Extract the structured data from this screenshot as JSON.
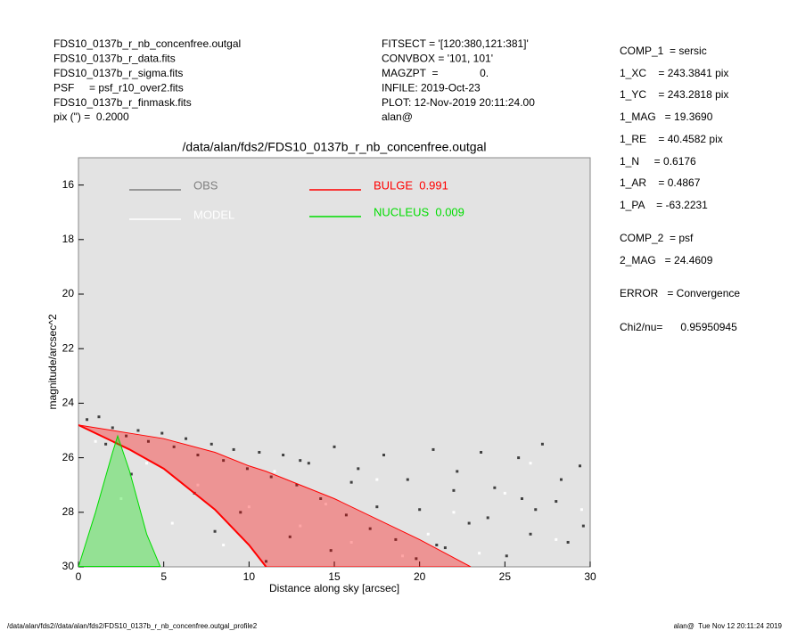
{
  "header": {
    "left": [
      "FDS10_0137b_r_nb_concenfree.outgal",
      "FDS10_0137b_r_data.fits",
      "FDS10_0137b_r_sigma.fits",
      "PSF     = psf_r10_over2.fits",
      "FDS10_0137b_r_finmask.fits",
      "pix (\") =  0.2000"
    ],
    "middle": [
      "FITSECT = '[120:380,121:381]'",
      "CONVBOX = '101, 101'",
      "MAGZPT  =              0.",
      "INFILE: 2019-Oct-23",
      "PLOT: 12-Nov-2019 20:11:24.00",
      "alan@"
    ],
    "right": [
      "COMP_1  = sersic",
      "1_XC    = 243.3841 pix",
      "1_YC    = 243.2818 pix",
      "1_MAG   = 19.3690",
      "1_RE    = 40.4582 pix",
      "1_N     = 0.6176",
      "1_AR    = 0.4867",
      "1_PA    = -63.2231",
      "COMP_2  = psf",
      "2_MAG   = 24.4609",
      "ERROR   = Convergence",
      "Chi2/nu=      0.95950945"
    ]
  },
  "footer": {
    "left": "/data/alan/fds2//data/alan/fds2/FDS10_0137b_r_nb_concenfree.outgal_profile2",
    "right": "alan@  Tue Nov 12 20:11:24 2019"
  },
  "chart_data": {
    "type": "scatter",
    "title": "/data/alan/fds2/FDS10_0137b_r_nb_concenfree.outgal",
    "xlabel": "Distance along sky [arcsec]",
    "ylabel": "magnitude/arcsec^2",
    "xlim": [
      0,
      30
    ],
    "ylim": [
      30,
      15
    ],
    "xticks": [
      0,
      5,
      10,
      15,
      20,
      25,
      30
    ],
    "yticks": [
      16,
      18,
      20,
      22,
      24,
      26,
      28,
      30
    ],
    "series": [
      {
        "name": "OBS",
        "color": "#808080",
        "pointcolor": "#404040",
        "x": [
          0.5,
          1.2,
          2.0,
          2.8,
          3.5,
          4.1,
          4.9,
          5.6,
          6.3,
          7.0,
          7.8,
          8.5,
          9.1,
          9.9,
          10.6,
          11.3,
          12.0,
          12.8,
          13.5,
          14.2,
          15.0,
          15.7,
          16.4,
          17.1,
          17.9,
          18.6,
          19.3,
          20.0,
          20.8,
          21.5,
          22.2,
          22.9,
          23.6,
          24.4,
          25.1,
          25.8,
          26.5,
          27.2,
          28.0,
          28.7,
          29.4,
          1.6,
          3.1,
          6.8,
          9.5,
          12.4,
          14.8,
          17.5,
          19.8,
          22.0,
          24.0,
          26.0,
          28.3,
          29.6,
          11.0,
          16.0,
          21.0,
          26.8,
          8.0,
          13.0
        ],
        "values": [
          24.6,
          24.5,
          24.9,
          25.2,
          25.0,
          25.4,
          25.1,
          25.6,
          25.3,
          25.9,
          25.5,
          26.1,
          25.7,
          26.4,
          25.8,
          26.7,
          25.9,
          27.0,
          26.2,
          27.5,
          25.6,
          28.1,
          26.4,
          28.6,
          25.9,
          29.0,
          26.8,
          27.9,
          25.7,
          29.3,
          26.5,
          28.4,
          25.8,
          27.1,
          29.6,
          26.0,
          28.8,
          25.5,
          27.6,
          29.1,
          26.3,
          25.5,
          26.6,
          27.3,
          28.0,
          28.9,
          29.4,
          27.8,
          29.7,
          27.2,
          28.2,
          27.5,
          26.8,
          28.5,
          29.8,
          26.9,
          29.2,
          27.9,
          28.7,
          26.1
        ]
      },
      {
        "name": "MODEL",
        "color": "#ffffff",
        "pointcolor": "#ffffff",
        "x": [
          1,
          4,
          7,
          10,
          13,
          16,
          19,
          22,
          25,
          28,
          2.5,
          5.5,
          8.5,
          11.5,
          14.5,
          17.5,
          20.5,
          23.5,
          26.5,
          29.5
        ],
        "values": [
          25.4,
          26.2,
          27.0,
          27.8,
          28.5,
          29.1,
          29.6,
          28.0,
          27.3,
          29.0,
          27.5,
          28.4,
          29.2,
          26.5,
          27.7,
          26.8,
          28.8,
          29.5,
          26.2,
          27.9
        ]
      },
      {
        "name": "BULGE  0.991",
        "color": "#ff0000",
        "band": true,
        "x": [
          0,
          3,
          5,
          8,
          10,
          11,
          15,
          20,
          23
        ],
        "values": [
          24.8,
          25.1,
          25.3,
          25.8,
          26.3,
          26.5,
          27.5,
          29.0,
          30.0
        ],
        "lower": [
          24.8,
          25.7,
          26.4,
          27.9,
          29.2,
          30.0,
          null,
          null,
          null
        ]
      },
      {
        "name": "NUCLEUS  0.009",
        "color": "#00dd00",
        "band": true,
        "x": [
          0,
          1,
          2,
          2.3,
          3,
          4,
          4.8
        ],
        "values": [
          30.0,
          28.0,
          25.8,
          25.2,
          26.5,
          28.8,
          30.0
        ],
        "lower": [
          30,
          30,
          30,
          30,
          30,
          30,
          30
        ]
      }
    ]
  }
}
